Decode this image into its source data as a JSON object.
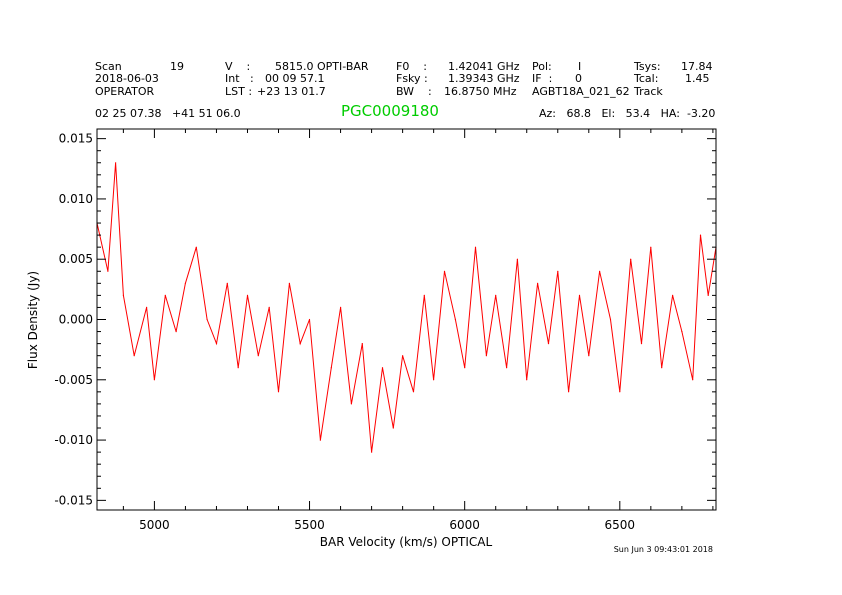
{
  "header": {
    "col1": [
      "Scan",
      "2018-06-03",
      "OPERATOR"
    ],
    "scan_value": "19",
    "col2_labels": [
      "V    :",
      "Int   :",
      "LST :"
    ],
    "col2_values": [
      "5815.0 OPTI-BAR",
      "00 09 57.1",
      "+23 13 01.7"
    ],
    "col3_labels": [
      "F0    :",
      "Fsky :",
      "BW    :"
    ],
    "col3_values": [
      "1.42041 GHz",
      "1.39343 GHz",
      "16.8750 MHz"
    ],
    "col4": [
      "Pol:",
      "IF  :",
      "AGBT18A_021_62"
    ],
    "col4_values": [
      "I",
      "0"
    ],
    "col5_labels": [
      "Tsys:",
      "Tcal:",
      "Track"
    ],
    "col5_values": [
      "17.84",
      "1.45"
    ],
    "coords": "02 25 07.38   +41 51 06.0",
    "source": "PGC0009180",
    "pointing": "Az:   68.8   El:   53.4   HA:  -3.20",
    "timestamp": "Sun Jun  3 09:43:01 2018"
  },
  "colors": {
    "series": "#ff0000",
    "source_title": "#00cc00",
    "axes": "#000000"
  },
  "chart_data": {
    "type": "line",
    "xlabel": "BAR Velocity (km/s) OPTICAL",
    "ylabel": "Flux Density (Jy)",
    "xlim": [
      4815,
      6810
    ],
    "ylim": [
      -0.0158,
      0.0158
    ],
    "x_ticks": [
      5000,
      5500,
      6000,
      6500
    ],
    "x_tick_labels": [
      "5000",
      "5500",
      "6000",
      "6500"
    ],
    "y_ticks": [
      -0.015,
      -0.01,
      -0.005,
      0.0,
      0.005,
      0.01,
      0.015
    ],
    "y_tick_labels": [
      "-0.015",
      "-0.010",
      "-0.005",
      "0.000",
      "0.005",
      "0.010",
      "0.015"
    ],
    "grid": false,
    "series": [
      {
        "x": [
          4815,
          4850,
          4875,
          4900,
          4935,
          4975,
          5000,
          5035,
          5070,
          5100,
          5135,
          5170,
          5200,
          5235,
          5270,
          5300,
          5335,
          5370,
          5400,
          5435,
          5470,
          5500,
          5535,
          5570,
          5600,
          5635,
          5670,
          5700,
          5735,
          5770,
          5800,
          5835,
          5870,
          5900,
          5935,
          5970,
          6000,
          6035,
          6070,
          6100,
          6135,
          6170,
          6200,
          6235,
          6270,
          6300,
          6335,
          6370,
          6400,
          6435,
          6470,
          6500,
          6535,
          6570,
          6600,
          6635,
          6670,
          6700,
          6735,
          6760,
          6785,
          6810
        ],
        "y": [
          0.008,
          0.004,
          0.013,
          0.002,
          -0.003,
          0.001,
          -0.005,
          0.002,
          -0.001,
          0.003,
          0.006,
          0.0,
          -0.002,
          0.003,
          -0.004,
          0.002,
          -0.003,
          0.001,
          -0.006,
          0.003,
          -0.002,
          0.0,
          -0.01,
          -0.004,
          0.001,
          -0.007,
          -0.002,
          -0.011,
          -0.004,
          -0.009,
          -0.003,
          -0.006,
          0.002,
          -0.005,
          0.004,
          0.0,
          -0.004,
          0.006,
          -0.003,
          0.002,
          -0.004,
          0.005,
          -0.005,
          0.003,
          -0.002,
          0.004,
          -0.006,
          0.002,
          -0.003,
          0.004,
          0.0,
          -0.006,
          0.005,
          -0.002,
          0.006,
          -0.004,
          0.002,
          -0.001,
          -0.005,
          0.007,
          0.002,
          0.006
        ]
      }
    ]
  }
}
